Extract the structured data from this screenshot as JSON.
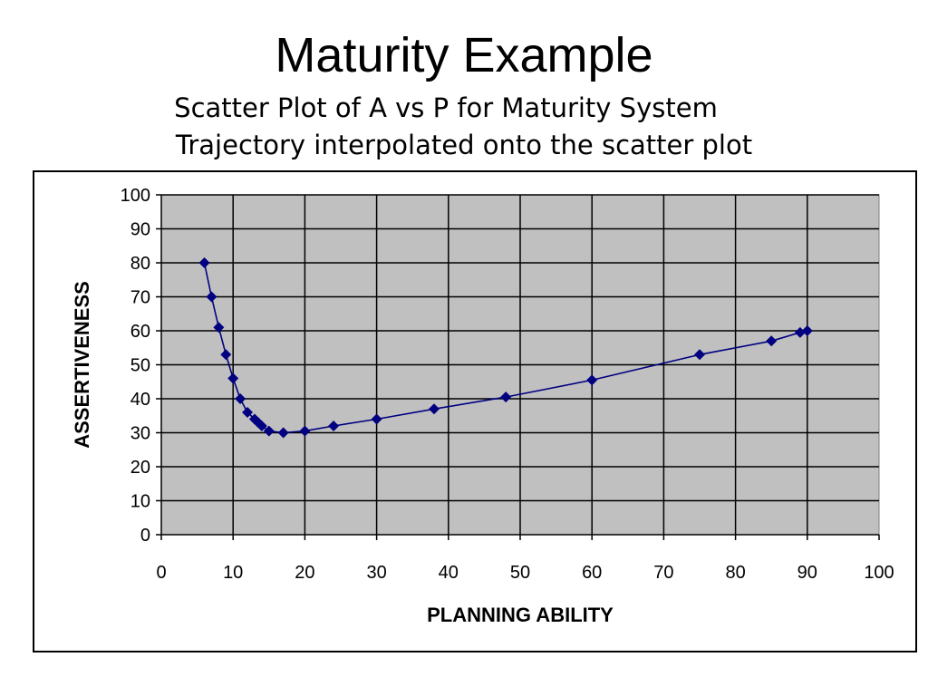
{
  "slide": {
    "title": "Maturity Example",
    "subtitle_1": "Scatter Plot of A vs P for Maturity System",
    "subtitle_2": "Trajectory interpolated onto the scatter plot"
  },
  "chart_data": {
    "type": "scatter",
    "title": "",
    "xlabel": "PLANNING ABILITY",
    "ylabel": "ASSERTIVENESS",
    "xlim": [
      0,
      100
    ],
    "ylim": [
      0,
      100
    ],
    "xticks": [
      0,
      10,
      20,
      30,
      40,
      50,
      60,
      70,
      80,
      90,
      100
    ],
    "yticks": [
      0,
      10,
      20,
      30,
      40,
      50,
      60,
      70,
      80,
      90,
      100
    ],
    "grid": true,
    "plot_background": "#c0c0c0",
    "series": [
      {
        "color": "#000080",
        "marker": "diamond",
        "connected": true,
        "points": [
          [
            6,
            80
          ],
          [
            7,
            70
          ],
          [
            8,
            61
          ],
          [
            9,
            53
          ],
          [
            10,
            46
          ],
          [
            11,
            40
          ],
          [
            12,
            36
          ],
          [
            13,
            34
          ],
          [
            13.5,
            33
          ],
          [
            14,
            32
          ],
          [
            15,
            30.5
          ],
          [
            17,
            30
          ],
          [
            20,
            30.5
          ],
          [
            24,
            32
          ],
          [
            30,
            34
          ],
          [
            38,
            37
          ],
          [
            48,
            40.5
          ],
          [
            60,
            45.5
          ],
          [
            75,
            53
          ],
          [
            85,
            57
          ],
          [
            89,
            59.5
          ],
          [
            90,
            60
          ]
        ]
      }
    ]
  }
}
